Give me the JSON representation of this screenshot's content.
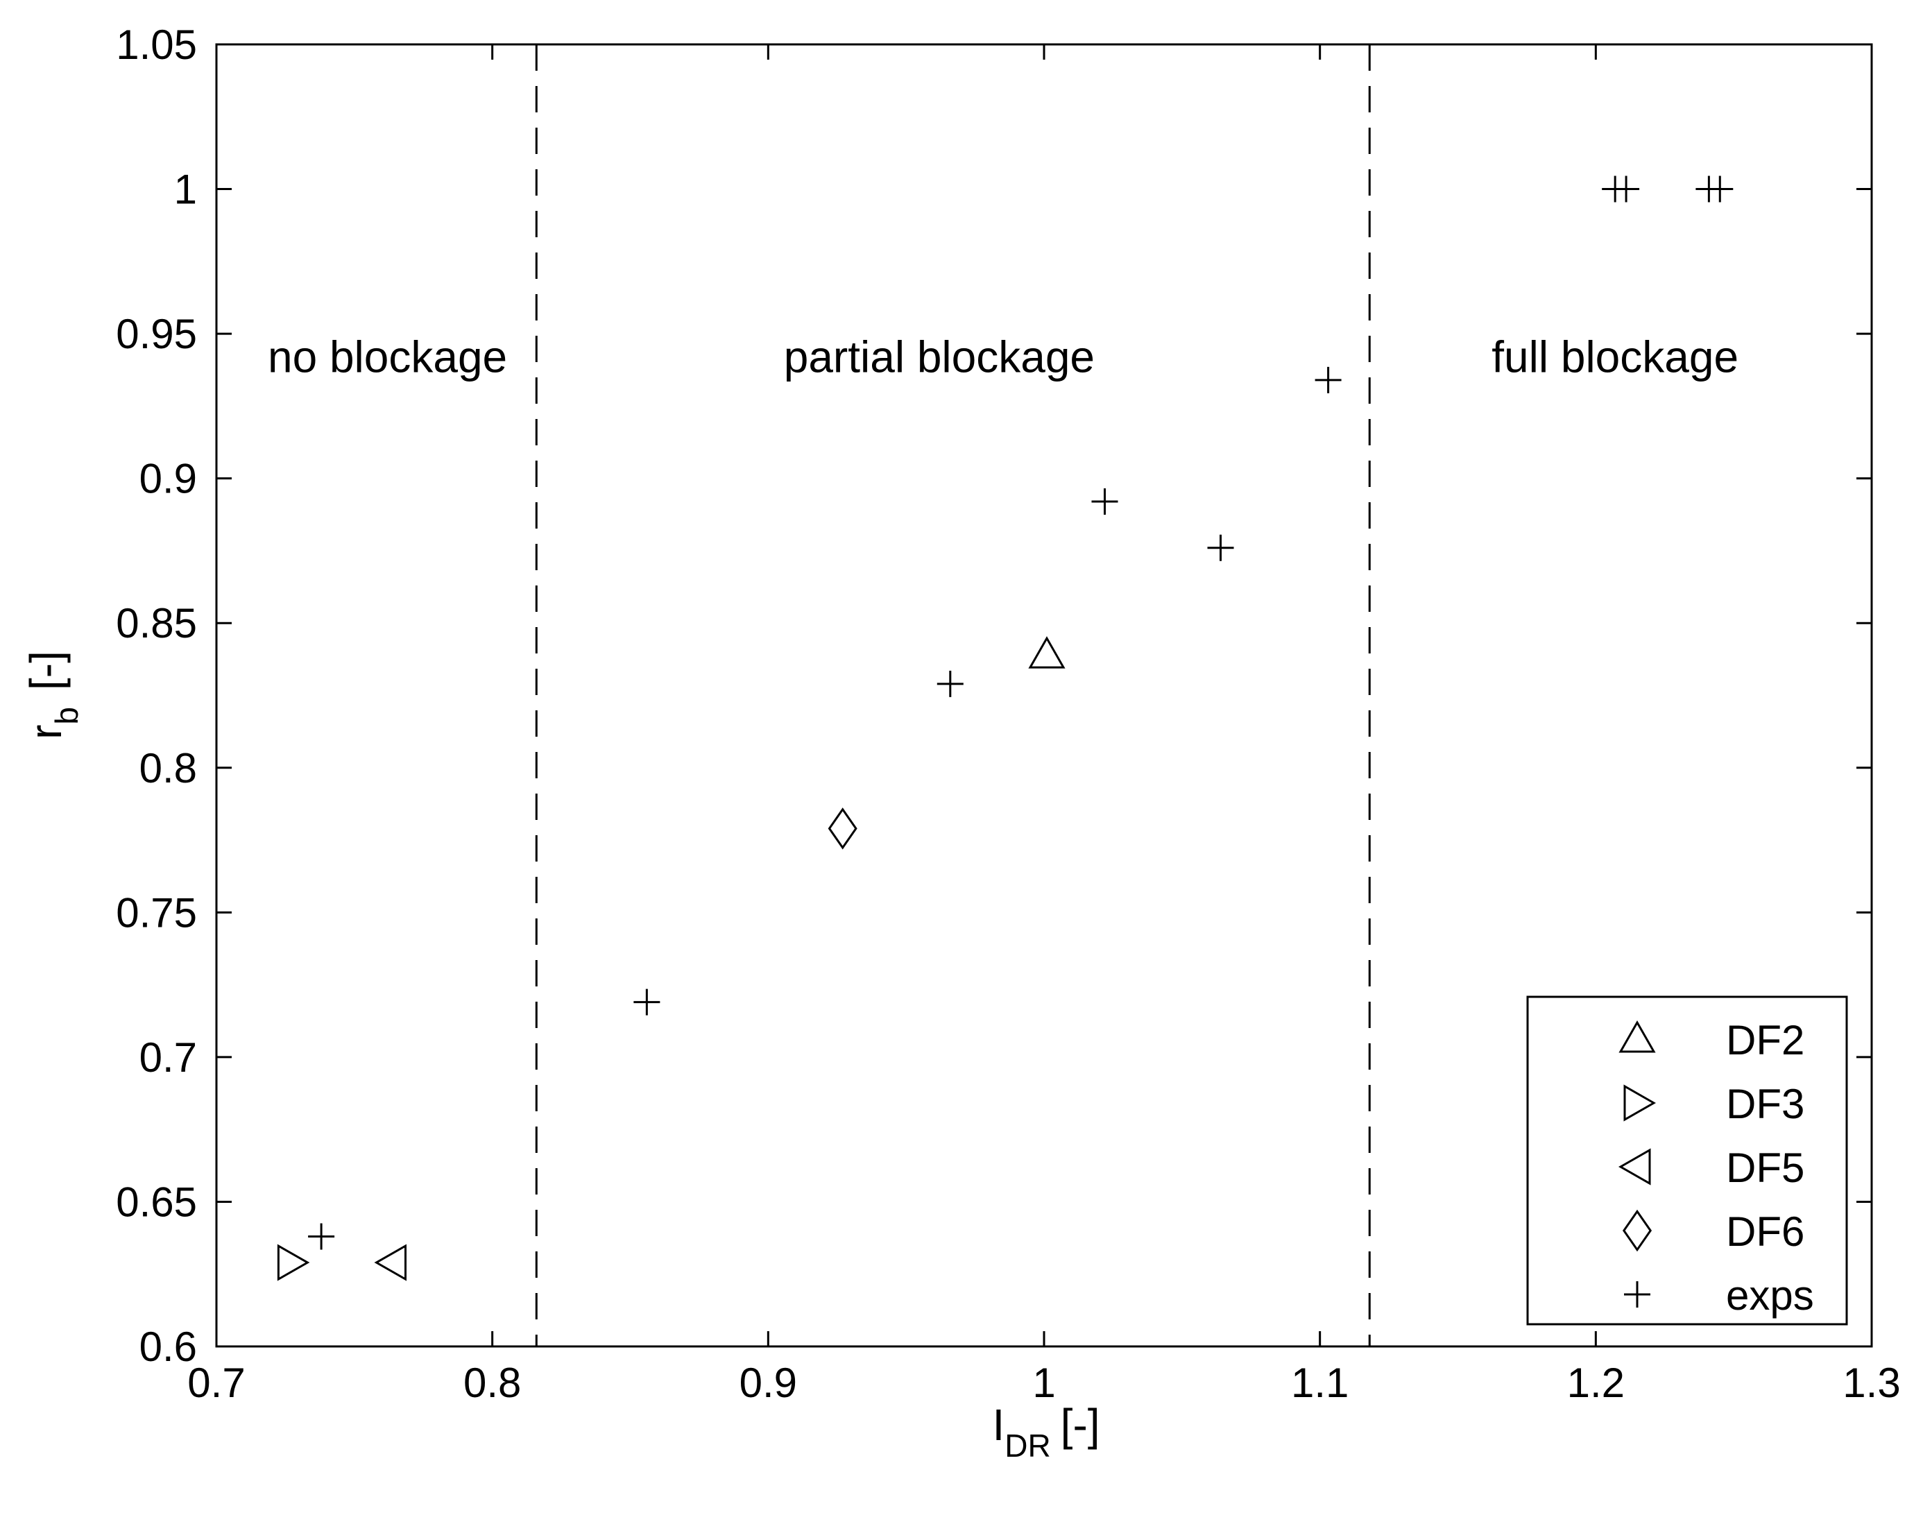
{
  "chart_data": {
    "type": "scatter",
    "xlabel": {
      "main": "I",
      "sub": "DR",
      "unit": "[-]"
    },
    "ylabel": {
      "main": "r",
      "sub": "b",
      "unit": "[-]"
    },
    "xlim": [
      0.7,
      1.3
    ],
    "ylim": [
      0.6,
      1.05
    ],
    "x_ticks": [
      0.7,
      0.8,
      0.9,
      1.0,
      1.1,
      1.2,
      1.3
    ],
    "x_tick_labels": [
      "0.7",
      "0.8",
      "0.9",
      "1",
      "1.1",
      "1.2",
      "1.3"
    ],
    "y_ticks": [
      0.6,
      0.65,
      0.7,
      0.75,
      0.8,
      0.85,
      0.9,
      0.95,
      1.0,
      1.05
    ],
    "y_tick_labels": [
      "0.6",
      "0.65",
      "0.7",
      "0.75",
      "0.8",
      "0.85",
      "0.9",
      "0.95",
      "1",
      "1.05"
    ],
    "grid": false,
    "legend_position": "bottom-right",
    "vertical_lines": [
      {
        "x": 0.816,
        "style": "dashed"
      },
      {
        "x": 1.118,
        "style": "dashed"
      }
    ],
    "region_labels": [
      {
        "text": "no blockage",
        "x": 0.762,
        "y": 0.942
      },
      {
        "text": "partial blockage",
        "x": 0.962,
        "y": 0.942
      },
      {
        "text": "full blockage",
        "x": 1.207,
        "y": 0.942
      }
    ],
    "series": [
      {
        "name": "DF2",
        "marker": "triangle-up",
        "points": [
          [
            1.001,
            0.839
          ]
        ]
      },
      {
        "name": "DF3",
        "marker": "triangle-right",
        "points": [
          [
            0.727,
            0.629
          ]
        ]
      },
      {
        "name": "DF5",
        "marker": "triangle-left",
        "points": [
          [
            0.764,
            0.629
          ]
        ]
      },
      {
        "name": "DF6",
        "marker": "diamond",
        "points": [
          [
            0.927,
            0.779
          ]
        ]
      },
      {
        "name": "exps",
        "marker": "plus",
        "points": [
          [
            0.738,
            0.638
          ],
          [
            0.856,
            0.719
          ],
          [
            0.966,
            0.829
          ],
          [
            1.022,
            0.892
          ],
          [
            1.064,
            0.876
          ],
          [
            1.103,
            0.934
          ],
          [
            1.207,
            1.0
          ],
          [
            1.211,
            1.0
          ],
          [
            1.241,
            1.0
          ],
          [
            1.245,
            1.0
          ]
        ]
      }
    ]
  }
}
